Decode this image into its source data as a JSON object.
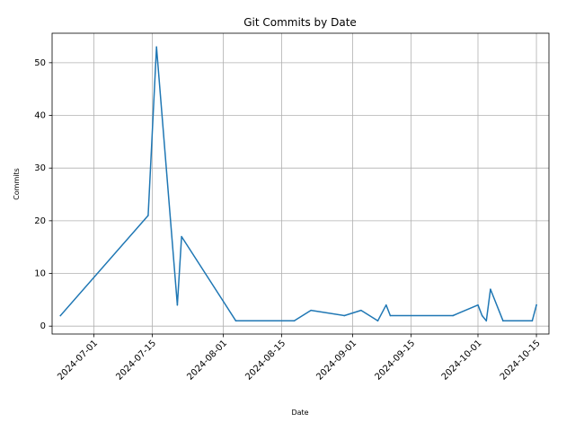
{
  "chart_data": {
    "type": "line",
    "title": "Git Commits by Date",
    "xlabel": "Date",
    "ylabel": "Commits",
    "grid": true,
    "line_color": "#1f77b4",
    "xlim": [
      "2024-06-21",
      "2024-10-18"
    ],
    "ylim": [
      -1.5,
      55.6
    ],
    "x_ticks": [
      "2024-07-01",
      "2024-07-15",
      "2024-08-01",
      "2024-08-15",
      "2024-09-01",
      "2024-09-15",
      "2024-10-01",
      "2024-10-15"
    ],
    "y_ticks": [
      0,
      10,
      20,
      30,
      40,
      50
    ],
    "x": [
      "2024-06-23",
      "2024-07-14",
      "2024-07-16",
      "2024-07-21",
      "2024-07-22",
      "2024-08-04",
      "2024-08-18",
      "2024-08-22",
      "2024-08-30",
      "2024-09-03",
      "2024-09-07",
      "2024-09-09",
      "2024-09-10",
      "2024-09-25",
      "2024-10-01",
      "2024-10-02",
      "2024-10-03",
      "2024-10-04",
      "2024-10-07",
      "2024-10-14",
      "2024-10-15"
    ],
    "values": [
      2,
      21,
      53,
      4,
      17,
      1,
      1,
      3,
      2,
      3,
      1,
      4,
      2,
      2,
      4,
      2,
      1,
      7,
      1,
      1,
      4
    ]
  }
}
